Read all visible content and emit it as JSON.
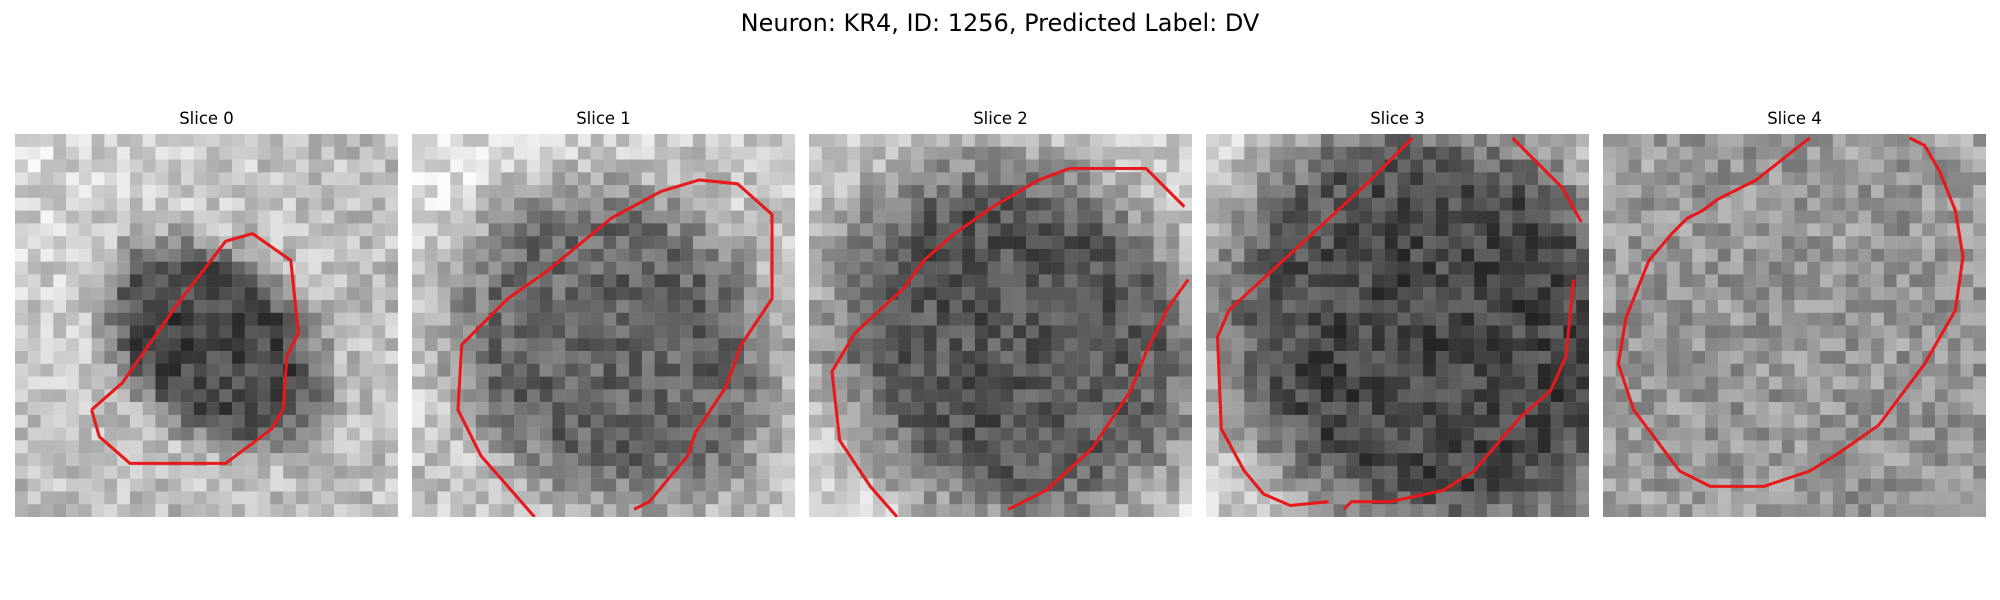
{
  "figure": {
    "title": "Neuron: KR4, ID: 1256, Predicted Label: DV",
    "contour_color": "#e8191c",
    "grid_size": 30
  },
  "panels": [
    {
      "title": "Slice 0",
      "center": [
        0.52,
        0.55
      ],
      "radius": [
        0.22,
        0.32
      ],
      "angle": 40,
      "inside_gray": 70,
      "outside_gray": 190,
      "bright_corner": "top-left",
      "contour": [
        [
          0.2,
          0.72
        ],
        [
          0.28,
          0.65
        ],
        [
          0.42,
          0.45
        ],
        [
          0.55,
          0.28
        ],
        [
          0.62,
          0.26
        ],
        [
          0.72,
          0.33
        ],
        [
          0.74,
          0.52
        ],
        [
          0.71,
          0.58
        ],
        [
          0.7,
          0.72
        ],
        [
          0.67,
          0.77
        ],
        [
          0.55,
          0.86
        ],
        [
          0.3,
          0.86
        ],
        [
          0.22,
          0.79
        ],
        [
          0.2,
          0.72
        ]
      ],
      "seed": 11
    },
    {
      "title": "Slice 1",
      "center": [
        0.52,
        0.55
      ],
      "radius": [
        0.38,
        0.45
      ],
      "angle": 40,
      "inside_gray": 100,
      "outside_gray": 195,
      "bright_corner": "top-left",
      "contour": [
        [
          0.32,
          1.0
        ],
        [
          0.18,
          0.84
        ],
        [
          0.12,
          0.72
        ],
        [
          0.13,
          0.55
        ],
        [
          0.18,
          0.5
        ],
        [
          0.25,
          0.43
        ],
        [
          0.35,
          0.36
        ],
        [
          0.52,
          0.22
        ],
        [
          0.65,
          0.15
        ],
        [
          0.75,
          0.12
        ],
        [
          0.85,
          0.13
        ],
        [
          0.94,
          0.21
        ],
        [
          0.94,
          0.43
        ],
        [
          0.86,
          0.55
        ],
        [
          0.82,
          0.66
        ],
        [
          0.78,
          0.72
        ],
        [
          0.74,
          0.78
        ],
        [
          0.72,
          0.84
        ],
        [
          0.62,
          0.96
        ],
        [
          0.58,
          0.98
        ]
      ],
      "seed": 22
    },
    {
      "title": "Slice 2",
      "center": [
        0.55,
        0.55
      ],
      "radius": [
        0.44,
        0.52
      ],
      "angle": 40,
      "inside_gray": 85,
      "outside_gray": 200,
      "bright_corner": "bottom-right",
      "contour": [
        [
          0.23,
          1.0
        ],
        [
          0.16,
          0.92
        ],
        [
          0.08,
          0.8
        ],
        [
          0.06,
          0.62
        ],
        [
          0.12,
          0.52
        ],
        [
          0.25,
          0.4
        ],
        [
          0.3,
          0.33
        ],
        [
          0.38,
          0.26
        ],
        [
          0.48,
          0.19
        ],
        [
          0.6,
          0.12
        ],
        [
          0.68,
          0.09
        ],
        [
          0.88,
          0.09
        ],
        [
          0.98,
          0.19
        ]
      ],
      "contour2": [
        [
          0.52,
          0.98
        ],
        [
          0.62,
          0.93
        ],
        [
          0.74,
          0.82
        ],
        [
          0.84,
          0.67
        ],
        [
          0.88,
          0.57
        ],
        [
          0.94,
          0.45
        ],
        [
          0.99,
          0.38
        ]
      ],
      "seed": 33
    },
    {
      "title": "Slice 3",
      "center": [
        0.58,
        0.5
      ],
      "radius": [
        0.52,
        0.6
      ],
      "angle": 40,
      "inside_gray": 70,
      "outside_gray": 205,
      "bright_corner": "top-left",
      "contour": [
        [
          0.54,
          0.01
        ],
        [
          0.42,
          0.13
        ],
        [
          0.18,
          0.35
        ],
        [
          0.06,
          0.46
        ],
        [
          0.03,
          0.53
        ],
        [
          0.04,
          0.77
        ],
        [
          0.1,
          0.88
        ],
        [
          0.15,
          0.94
        ],
        [
          0.22,
          0.97
        ],
        [
          0.32,
          0.96
        ]
      ],
      "contour2": [
        [
          0.36,
          0.98
        ],
        [
          0.38,
          0.96
        ],
        [
          0.48,
          0.96
        ],
        [
          0.62,
          0.93
        ],
        [
          0.7,
          0.88
        ],
        [
          0.82,
          0.74
        ],
        [
          0.9,
          0.67
        ],
        [
          0.94,
          0.58
        ],
        [
          0.96,
          0.38
        ]
      ],
      "contour3": [
        [
          0.8,
          0.01
        ],
        [
          0.85,
          0.06
        ],
        [
          0.93,
          0.14
        ],
        [
          0.98,
          0.23
        ]
      ],
      "seed": 44
    },
    {
      "title": "Slice 4",
      "center": [
        0.52,
        0.52
      ],
      "radius": [
        0.58,
        0.62
      ],
      "angle": 40,
      "inside_gray": 150,
      "outside_gray": 165,
      "bright_corner": "none",
      "contour": [
        [
          0.54,
          0.01
        ],
        [
          0.4,
          0.12
        ],
        [
          0.3,
          0.17
        ],
        [
          0.26,
          0.2
        ],
        [
          0.22,
          0.22
        ],
        [
          0.18,
          0.26
        ],
        [
          0.12,
          0.33
        ],
        [
          0.1,
          0.38
        ],
        [
          0.06,
          0.48
        ],
        [
          0.04,
          0.6
        ],
        [
          0.08,
          0.72
        ],
        [
          0.14,
          0.8
        ],
        [
          0.2,
          0.88
        ],
        [
          0.28,
          0.92
        ],
        [
          0.42,
          0.92
        ],
        [
          0.54,
          0.88
        ],
        [
          0.62,
          0.83
        ],
        [
          0.72,
          0.76
        ],
        [
          0.78,
          0.68
        ],
        [
          0.84,
          0.6
        ],
        [
          0.92,
          0.46
        ],
        [
          0.94,
          0.32
        ],
        [
          0.92,
          0.2
        ],
        [
          0.88,
          0.1
        ],
        [
          0.84,
          0.03
        ],
        [
          0.8,
          0.01
        ]
      ],
      "seed": 55
    }
  ]
}
